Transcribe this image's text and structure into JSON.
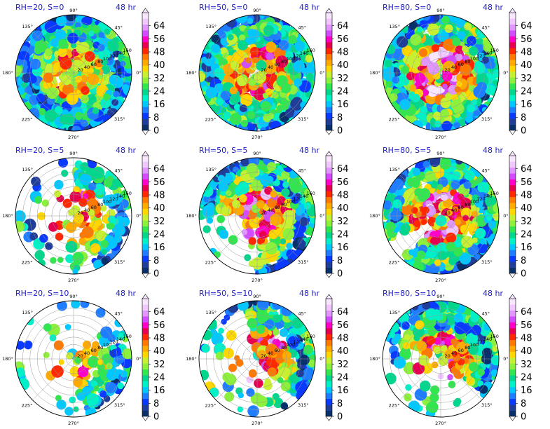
{
  "figure": {
    "time_label": "48 hr"
  },
  "colors": {
    "title": "#1a1acc",
    "colormap": [
      "#08306b",
      "#1f3d99",
      "#0a39ff",
      "#1f7dff",
      "#00c8ff",
      "#00f0c8",
      "#00d78c",
      "#32e650",
      "#8cf03c",
      "#c8f032",
      "#ffd700",
      "#ffaa00",
      "#ff7800",
      "#ff2800",
      "#e60050",
      "#ff00c8",
      "#d24bff",
      "#e196ff",
      "#f0c8ff",
      "#f8e6ff"
    ]
  },
  "chart_data": [
    {
      "type": "heatmap",
      "title": "RH=20, S=0",
      "subtitle": "48 hr",
      "rh": 20,
      "shear": 0,
      "r_labels": [
        "20",
        "40",
        "60",
        "80",
        "100",
        "120",
        "140",
        "160"
      ],
      "theta_labels": [
        "0°",
        "45°",
        "90°",
        "135°",
        "180°",
        "225°",
        "270°",
        "315°"
      ],
      "colorbar": {
        "ticks": [
          0,
          8,
          16,
          24,
          32,
          40,
          48,
          56,
          64
        ]
      },
      "rain_min_radius": 0.0,
      "coverage": 0.95,
      "peak_intensity": 0.55,
      "sector_center_deg": 0,
      "sector_width_deg": 360
    },
    {
      "type": "heatmap",
      "title": "RH=50, S=0",
      "subtitle": "48 hr",
      "rh": 50,
      "shear": 0,
      "r_labels": [
        "20",
        "40",
        "60",
        "80",
        "100",
        "120",
        "140",
        "160"
      ],
      "theta_labels": [
        "0°",
        "45°",
        "90°",
        "135°",
        "180°",
        "225°",
        "270°",
        "315°"
      ],
      "colorbar": {
        "ticks": [
          0,
          8,
          16,
          24,
          32,
          40,
          48,
          56,
          64
        ]
      },
      "rain_min_radius": 0.08,
      "coverage": 0.97,
      "peak_intensity": 0.65,
      "sector_center_deg": 0,
      "sector_width_deg": 360
    },
    {
      "type": "heatmap",
      "title": "RH=80, S=0",
      "subtitle": "48 hr",
      "rh": 80,
      "shear": 0,
      "r_labels": [
        "20",
        "40",
        "60",
        "80",
        "100",
        "120",
        "140",
        "160"
      ],
      "theta_labels": [
        "0°",
        "45°",
        "90°",
        "135°",
        "180°",
        "225°",
        "270°",
        "315°"
      ],
      "colorbar": {
        "ticks": [
          0,
          8,
          16,
          24,
          32,
          40,
          48,
          56,
          64
        ]
      },
      "rain_min_radius": 0.08,
      "coverage": 0.98,
      "peak_intensity": 0.85,
      "sector_center_deg": 0,
      "sector_width_deg": 360
    },
    {
      "type": "heatmap",
      "title": "RH=20, S=5",
      "subtitle": "48 hr",
      "rh": 20,
      "shear": 5,
      "r_labels": [
        "20",
        "40",
        "60",
        "80",
        "100",
        "120",
        "140",
        "160"
      ],
      "theta_labels": [
        "0°",
        "45°",
        "90°",
        "135°",
        "180°",
        "225°",
        "270°",
        "315°"
      ],
      "colorbar": {
        "ticks": [
          0,
          8,
          16,
          24,
          32,
          40,
          48,
          56,
          64
        ]
      },
      "rain_min_radius": 0.05,
      "coverage": 0.55,
      "peak_intensity": 0.7,
      "sector_center_deg": 10,
      "sector_width_deg": 150
    },
    {
      "type": "heatmap",
      "title": "RH=50, S=5",
      "subtitle": "48 hr",
      "rh": 50,
      "shear": 5,
      "r_labels": [
        "20",
        "40",
        "60",
        "80",
        "100",
        "120",
        "140",
        "160"
      ],
      "theta_labels": [
        "0°",
        "45°",
        "90°",
        "135°",
        "180°",
        "225°",
        "270°",
        "315°"
      ],
      "colorbar": {
        "ticks": [
          0,
          8,
          16,
          24,
          32,
          40,
          48,
          56,
          64
        ]
      },
      "rain_min_radius": 0.08,
      "coverage": 0.8,
      "peak_intensity": 0.75,
      "sector_center_deg": 45,
      "sector_width_deg": 260
    },
    {
      "type": "heatmap",
      "title": "RH=80, S=5",
      "subtitle": "48 hr",
      "rh": 80,
      "shear": 5,
      "r_labels": [
        "20",
        "40",
        "60",
        "80",
        "100",
        "120",
        "140",
        "160"
      ],
      "theta_labels": [
        "0°",
        "45°",
        "90°",
        "135°",
        "180°",
        "225°",
        "270°",
        "315°"
      ],
      "colorbar": {
        "ticks": [
          0,
          8,
          16,
          24,
          32,
          40,
          48,
          56,
          64
        ]
      },
      "rain_min_radius": 0.08,
      "coverage": 0.92,
      "peak_intensity": 0.8,
      "sector_center_deg": 40,
      "sector_width_deg": 330
    },
    {
      "type": "heatmap",
      "title": "RH=20, S=10",
      "subtitle": "48 hr",
      "rh": 20,
      "shear": 10,
      "r_labels": [
        "20",
        "40",
        "60",
        "80",
        "100",
        "120",
        "140",
        "160"
      ],
      "theta_labels": [
        "0°",
        "45°",
        "90°",
        "135°",
        "180°",
        "225°",
        "270°",
        "315°"
      ],
      "colorbar": {
        "ticks": [
          0,
          8,
          16,
          24,
          32,
          40,
          48,
          56,
          64
        ]
      },
      "rain_min_radius": 0.05,
      "coverage": 0.35,
      "peak_intensity": 0.6,
      "sector_center_deg": -20,
      "sector_width_deg": 120
    },
    {
      "type": "heatmap",
      "title": "RH=50, S=10",
      "subtitle": "48 hr",
      "rh": 50,
      "shear": 10,
      "r_labels": [
        "20",
        "40",
        "60",
        "80",
        "100",
        "120",
        "140",
        "160"
      ],
      "theta_labels": [
        "0°",
        "45°",
        "90°",
        "135°",
        "180°",
        "225°",
        "270°",
        "315°"
      ],
      "colorbar": {
        "ticks": [
          0,
          8,
          16,
          24,
          32,
          40,
          48,
          56,
          64
        ]
      },
      "rain_min_radius": 0.05,
      "coverage": 0.6,
      "peak_intensity": 0.75,
      "sector_center_deg": 30,
      "sector_width_deg": 150
    },
    {
      "type": "heatmap",
      "title": "RH=80, S=10",
      "subtitle": "48 hr",
      "rh": 80,
      "shear": 10,
      "r_labels": [
        "20",
        "40",
        "60",
        "80",
        "100",
        "120",
        "140",
        "160"
      ],
      "theta_labels": [
        "0°",
        "45°",
        "90°",
        "135°",
        "180°",
        "225°",
        "270°",
        "315°"
      ],
      "colorbar": {
        "ticks": [
          0,
          8,
          16,
          24,
          32,
          40,
          48,
          56,
          64
        ]
      },
      "rain_min_radius": 0.05,
      "coverage": 0.75,
      "peak_intensity": 0.7,
      "sector_center_deg": 60,
      "sector_width_deg": 200
    }
  ]
}
